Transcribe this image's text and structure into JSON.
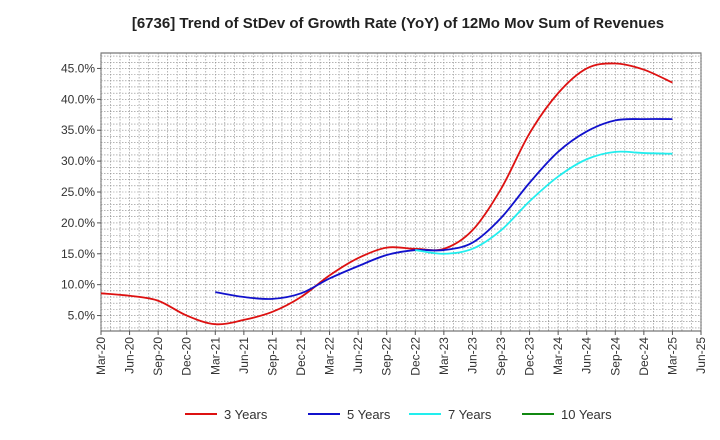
{
  "chart_data": {
    "type": "line",
    "title": "[6736]  Trend of StDev of Growth Rate (YoY) of 12Mo Mov Sum of Revenues",
    "xlabel": "",
    "ylabel": "",
    "grid": true,
    "legend_position": "bottom",
    "categories": [
      "Mar-20",
      "Jun-20",
      "Sep-20",
      "Dec-20",
      "Mar-21",
      "Jun-21",
      "Sep-21",
      "Dec-21",
      "Mar-22",
      "Jun-22",
      "Sep-22",
      "Dec-22",
      "Mar-23",
      "Jun-23",
      "Sep-23",
      "Dec-23",
      "Mar-24",
      "Jun-24",
      "Sep-24",
      "Dec-24",
      "Mar-25",
      "Jun-25"
    ],
    "ylim": [
      2.5,
      47.5
    ],
    "yticks": [
      5,
      10,
      15,
      20,
      25,
      30,
      35,
      40,
      45
    ],
    "ytick_labels": [
      "5.0%",
      "10.0%",
      "15.0%",
      "20.0%",
      "25.0%",
      "30.0%",
      "35.0%",
      "40.0%",
      "45.0%"
    ],
    "series": [
      {
        "name": "3 Years",
        "color": "#dd1111",
        "values": [
          8.6,
          8.2,
          7.4,
          5.0,
          3.6,
          4.3,
          5.6,
          8.0,
          11.5,
          14.3,
          16.0,
          15.8,
          15.8,
          18.8,
          25.5,
          34.5,
          41.0,
          45.0,
          45.8,
          44.8,
          42.7,
          null
        ]
      },
      {
        "name": "5 Years",
        "color": "#1111cc",
        "values": [
          null,
          null,
          null,
          null,
          8.8,
          8.0,
          7.7,
          8.6,
          11.0,
          13.0,
          14.8,
          15.6,
          15.6,
          16.8,
          20.8,
          26.5,
          31.5,
          34.8,
          36.6,
          36.8,
          36.8,
          null
        ]
      },
      {
        "name": "7 Years",
        "color": "#22eeee",
        "values": [
          null,
          null,
          null,
          null,
          null,
          null,
          null,
          null,
          null,
          null,
          null,
          15.6,
          15.0,
          15.8,
          18.8,
          23.5,
          27.5,
          30.3,
          31.5,
          31.3,
          31.2,
          null
        ]
      },
      {
        "name": "10 Years",
        "color": "#118811",
        "values": [
          null,
          null,
          null,
          null,
          null,
          null,
          null,
          null,
          null,
          null,
          null,
          null,
          null,
          null,
          null,
          null,
          null,
          null,
          null,
          null,
          null,
          null
        ]
      }
    ]
  }
}
